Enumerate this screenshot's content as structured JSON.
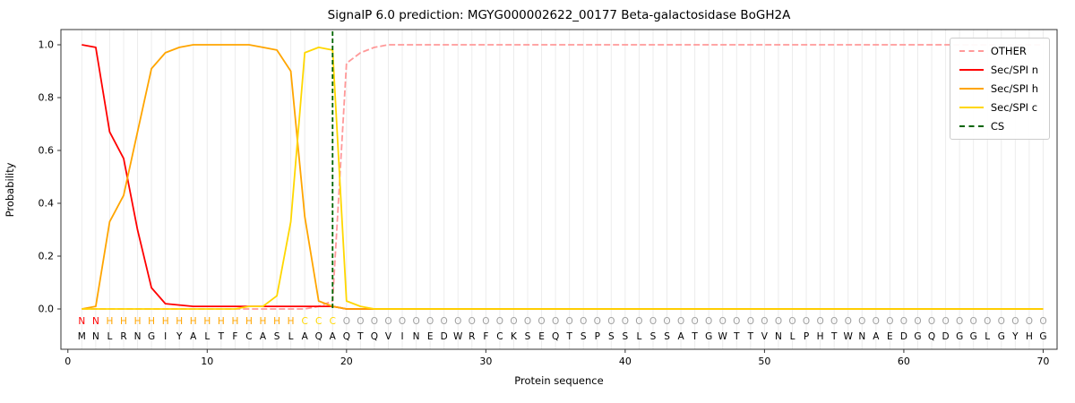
{
  "figure": {
    "title": "SignalP 6.0 prediction: MGYG000002622_00177 Beta-galactosidase BoGH2A",
    "xlabel": "Protein sequence",
    "ylabel": "Probability"
  },
  "chart_data": {
    "type": "line",
    "title": "SignalP 6.0 prediction: MGYG000002622_00177 Beta-galactosidase BoGH2A",
    "xlabel": "Protein sequence",
    "ylabel": "Probability",
    "xlim": [
      0,
      71
    ],
    "ylim": [
      0,
      1.0
    ],
    "xticks": [
      0,
      10,
      20,
      30,
      40,
      50,
      60,
      70
    ],
    "yticks": [
      0.0,
      0.2,
      0.4,
      0.6,
      0.8,
      1.0
    ],
    "grid": "vertical-line-per-residue",
    "legend_position": "upper-right",
    "sequence": "MNLRNGIYALTFCASLAQAQTQVINEDWRFCKSEQTSPSSLSSATGWTTVNLPHTWNAEDGQDGGLGYHG",
    "pred_labels": [
      "N",
      "N",
      "H",
      "H",
      "H",
      "H",
      "H",
      "H",
      "H",
      "H",
      "H",
      "H",
      "H",
      "H",
      "H",
      "H",
      "C",
      "C",
      "C",
      "O",
      "O",
      "O",
      "O",
      "O",
      "O",
      "O",
      "O",
      "O",
      "O",
      "O",
      "O",
      "O",
      "O",
      "O",
      "O",
      "O",
      "O",
      "O",
      "O",
      "O",
      "O",
      "O",
      "O",
      "O",
      "O",
      "O",
      "O",
      "O",
      "O",
      "O",
      "O",
      "O",
      "O",
      "O",
      "O",
      "O",
      "O",
      "O",
      "O",
      "O",
      "O",
      "O",
      "O",
      "O",
      "O",
      "O",
      "O",
      "O",
      "O",
      "O"
    ],
    "label_colors": {
      "N": "#ff0000",
      "H": "#ffa500",
      "C": "#ffd700",
      "O": "#a0a0a0"
    },
    "series": [
      {
        "name": "OTHER",
        "color": "#ff9999",
        "dashed": true,
        "values": [
          0,
          0,
          0,
          0,
          0,
          0,
          0,
          0,
          0,
          0,
          0,
          0,
          0,
          0,
          0,
          0,
          0,
          0.01,
          0.03,
          0.93,
          0.97,
          0.99,
          1,
          1,
          1,
          1,
          1,
          1,
          1,
          1,
          1,
          1,
          1,
          1,
          1,
          1,
          1,
          1,
          1,
          1,
          1,
          1,
          1,
          1,
          1,
          1,
          1,
          1,
          1,
          1,
          1,
          1,
          1,
          1,
          1,
          1,
          1,
          1,
          1,
          1,
          1,
          1,
          1,
          1,
          1,
          1,
          1,
          1,
          1,
          1
        ]
      },
      {
        "name": "Sec/SPI n",
        "color": "#ff0000",
        "dashed": false,
        "values": [
          1,
          0.99,
          0.67,
          0.57,
          0.3,
          0.08,
          0.02,
          0.015,
          0.01,
          0.01,
          0.01,
          0.01,
          0.01,
          0.01,
          0.01,
          0.01,
          0.01,
          0.01,
          0.01,
          0,
          0,
          0,
          0,
          0,
          0,
          0,
          0,
          0,
          0,
          0,
          0,
          0,
          0,
          0,
          0,
          0,
          0,
          0,
          0,
          0,
          0,
          0,
          0,
          0,
          0,
          0,
          0,
          0,
          0,
          0,
          0,
          0,
          0,
          0,
          0,
          0,
          0,
          0,
          0,
          0,
          0,
          0,
          0,
          0,
          0,
          0,
          0,
          0,
          0,
          0
        ]
      },
      {
        "name": "Sec/SPI h",
        "color": "#ffa500",
        "dashed": false,
        "values": [
          0,
          0.01,
          0.33,
          0.43,
          0.67,
          0.91,
          0.97,
          0.99,
          1,
          1,
          1,
          1,
          1,
          0.99,
          0.98,
          0.9,
          0.35,
          0.03,
          0.01,
          0,
          0,
          0,
          0,
          0,
          0,
          0,
          0,
          0,
          0,
          0,
          0,
          0,
          0,
          0,
          0,
          0,
          0,
          0,
          0,
          0,
          0,
          0,
          0,
          0,
          0,
          0,
          0,
          0,
          0,
          0,
          0,
          0,
          0,
          0,
          0,
          0,
          0,
          0,
          0,
          0,
          0,
          0,
          0,
          0,
          0,
          0,
          0,
          0,
          0,
          0
        ]
      },
      {
        "name": "Sec/SPI c",
        "color": "#ffd700",
        "dashed": false,
        "values": [
          0,
          0,
          0,
          0,
          0,
          0,
          0,
          0,
          0,
          0,
          0,
          0,
          0.01,
          0.01,
          0.05,
          0.33,
          0.97,
          0.99,
          0.98,
          0.03,
          0.01,
          0,
          0,
          0,
          0,
          0,
          0,
          0,
          0,
          0,
          0,
          0,
          0,
          0,
          0,
          0,
          0,
          0,
          0,
          0,
          0,
          0,
          0,
          0,
          0,
          0,
          0,
          0,
          0,
          0,
          0,
          0,
          0,
          0,
          0,
          0,
          0,
          0,
          0,
          0,
          0,
          0,
          0,
          0,
          0,
          0,
          0,
          0,
          0,
          0
        ]
      }
    ],
    "cs_line": {
      "label": "CS",
      "x": 19,
      "color": "#006400",
      "dashed": true
    },
    "legend": [
      {
        "label": "OTHER",
        "color": "#ff9999",
        "dashed": true
      },
      {
        "label": "Sec/SPI n",
        "color": "#ff0000",
        "dashed": false
      },
      {
        "label": "Sec/SPI h",
        "color": "#ffa500",
        "dashed": false
      },
      {
        "label": "Sec/SPI c",
        "color": "#ffd700",
        "dashed": false
      },
      {
        "label": "CS",
        "color": "#006400",
        "dashed": true
      }
    ],
    "style": {
      "grid_color": "#ececec",
      "frame_color": "#333333",
      "tick_color": "#333333",
      "text_color": "#000000"
    }
  }
}
